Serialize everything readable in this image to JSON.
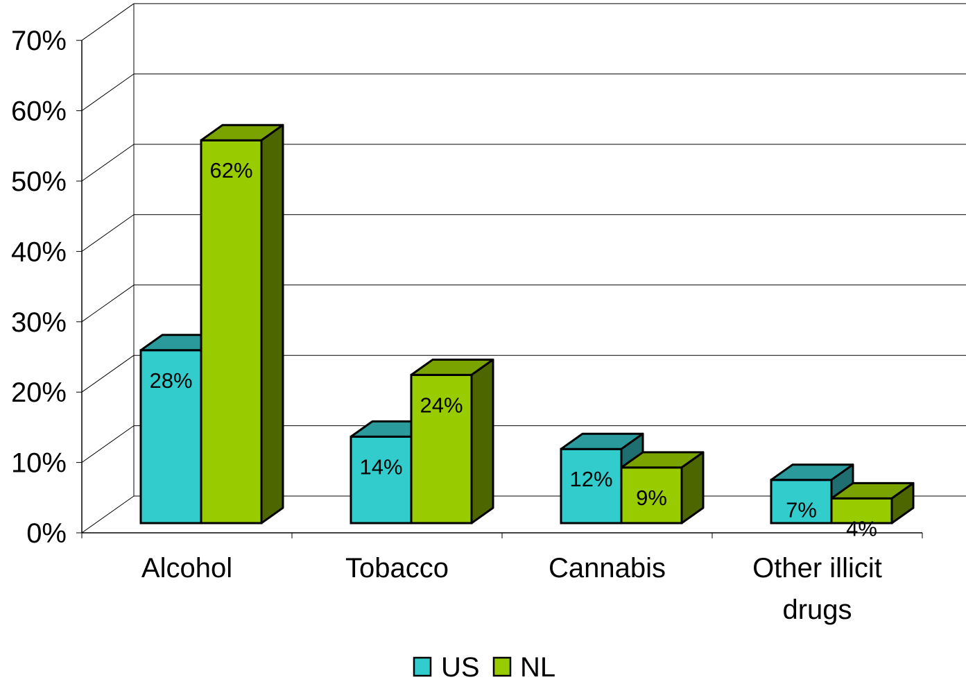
{
  "chart_data": {
    "type": "bar",
    "style": "3d-clustered-column",
    "title": "",
    "xlabel": "",
    "ylabel": "",
    "categories": [
      [
        "Alcohol"
      ],
      [
        "Tobacco"
      ],
      [
        "Cannabis"
      ],
      [
        "Other illicit",
        "drugs"
      ]
    ],
    "series": [
      {
        "name": "US",
        "values": [
          28,
          14,
          12,
          7
        ],
        "labels": [
          "28%",
          "14%",
          "12%",
          "7%"
        ],
        "color": "#33CCCC",
        "top_color": "#2B9A9C",
        "side_color": "#1F6E70"
      },
      {
        "name": "NL",
        "values": [
          62,
          24,
          9,
          4
        ],
        "labels": [
          "62%",
          "24%",
          "9%",
          "4%"
        ],
        "color": "#99CC00",
        "top_color": "#7AA300",
        "side_color": "#4D6600"
      }
    ],
    "ylim": [
      0,
      70
    ],
    "y_ticks": [
      "0%",
      "10%",
      "20%",
      "30%",
      "40%",
      "50%",
      "60%",
      "70%"
    ],
    "grid": true,
    "legend": {
      "position": "bottom"
    }
  }
}
